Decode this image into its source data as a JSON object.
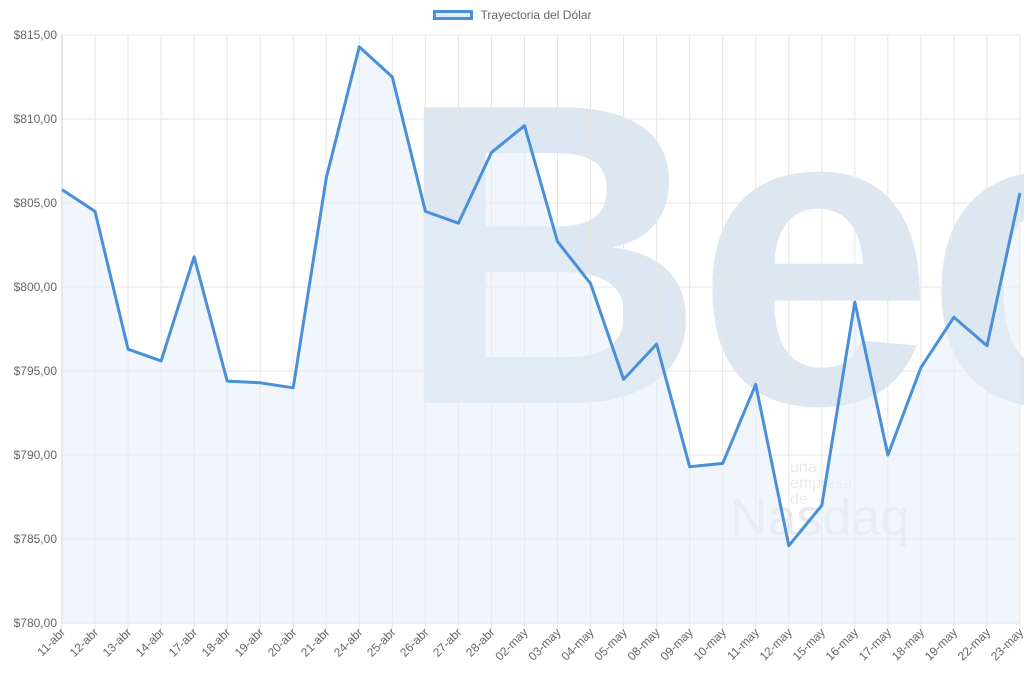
{
  "chart_data": {
    "type": "line",
    "legend": "Trayectoria del Dólar",
    "legend_position": "top-center",
    "categories": [
      "11-abr",
      "12-abr",
      "13-abr",
      "14-abr",
      "17-abr",
      "18-abr",
      "19-abr",
      "20-abr",
      "21-abr",
      "24-abr",
      "25-abr",
      "26-abr",
      "27-abr",
      "28-abr",
      "02-may",
      "03-may",
      "04-may",
      "05-may",
      "08-may",
      "09-may",
      "10-may",
      "11-may",
      "12-may",
      "15-may",
      "16-may",
      "17-may",
      "18-may",
      "19-may",
      "22-may",
      "23-may"
    ],
    "series": [
      {
        "name": "Trayectoria del Dólar",
        "values": [
          805.8,
          804.5,
          796.3,
          795.6,
          801.8,
          794.4,
          794.3,
          794.0,
          806.5,
          814.3,
          812.5,
          804.5,
          803.8,
          808.0,
          809.6,
          802.7,
          800.2,
          794.5,
          796.6,
          789.3,
          789.5,
          794.2,
          784.6,
          787.0,
          799.1,
          790.0,
          795.2,
          798.2,
          796.5,
          805.6
        ]
      }
    ],
    "ylim": [
      780,
      815
    ],
    "yticks": [
      "$780,00",
      "$785,00",
      "$790,00",
      "$795,00",
      "$800,00",
      "$805,00",
      "$810,00",
      "$815,00"
    ],
    "grid": true,
    "line_color": "#4a90d9",
    "fill_color": "#e3eef9"
  },
  "watermark": {
    "bec": "Bec",
    "nasdaq": "Nasdaq",
    "subtitle": "una empresa de"
  }
}
